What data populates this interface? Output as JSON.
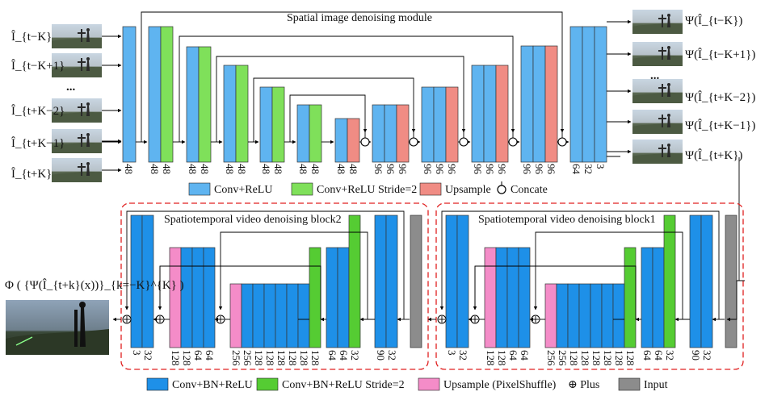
{
  "top": {
    "title": "Spatial image denoising module",
    "inputs": [
      "Î_{t−K}",
      "Î_{t−K+1}",
      "...",
      "Î_{t+K−2}",
      "Î_{t+K−1}",
      "Î_{t+K}"
    ],
    "outputs": [
      "Ψ(Î_{t−K})",
      "Ψ(Î_{t−K+1})",
      "...",
      "Ψ(Î_{t+K−2})",
      "Ψ(Î_{t+K−1})",
      "Ψ(Î_{t+K})"
    ],
    "channels": [
      "48",
      "48",
      "48",
      "48",
      "48",
      "48",
      "48",
      "48",
      "48",
      "48",
      "48",
      "96",
      "96",
      "96",
      "96",
      "96",
      "96",
      "96",
      "96",
      "96",
      "96",
      "96",
      "96",
      "64",
      "32",
      "3"
    ],
    "legend": {
      "conv_relu": "Conv+ReLU",
      "conv_relu_s2": "Conv+ReLU  Stride=2",
      "upsample": "Upsample",
      "concate": "Concate"
    }
  },
  "block2": {
    "title": "Spatiotemporal video denoising block2",
    "channels": [
      "3",
      "32",
      "128",
      "128",
      "64",
      "64",
      "256",
      "256",
      "128",
      "128",
      "128",
      "128",
      "128",
      "128",
      "64",
      "64",
      "32",
      "90",
      "32"
    ]
  },
  "block1": {
    "title": "Spatiotemporal video denoising block1",
    "channels": [
      "3",
      "32",
      "128",
      "128",
      "64",
      "64",
      "256",
      "256",
      "128",
      "128",
      "128",
      "128",
      "128",
      "128",
      "64",
      "64",
      "32",
      "90",
      "32"
    ]
  },
  "output": {
    "label": "Φ ( {Ψ(Î_{t+k}(x))}_{k=−K}^{K} )"
  },
  "legend_bottom": {
    "conv_bn_relu": "Conv+BN+ReLU",
    "conv_bn_relu_s2": "Conv+BN+ReLU  Stride=2",
    "upsample_ps": "Upsample (PixelShuffle)",
    "plus": "⊕ Plus",
    "input": "Input"
  },
  "colors": {
    "blue_top": "#5fb4f0",
    "green_top": "#7fe05a",
    "salmon": "#f08c84",
    "blue_bottom": "#1e90e8",
    "green_bottom": "#55cc33",
    "pink": "#f48cc8",
    "gray": "#8c8c8c",
    "dash": "#e02020"
  }
}
